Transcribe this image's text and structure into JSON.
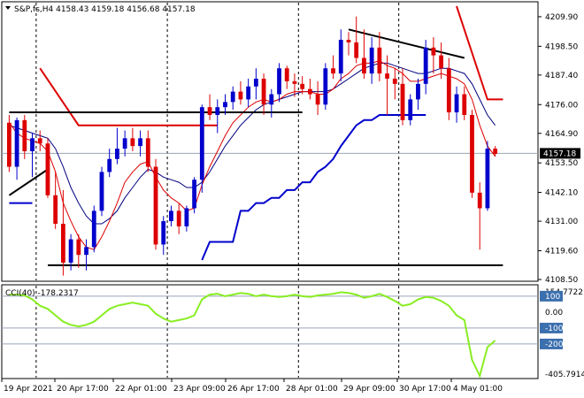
{
  "header": {
    "symbol_line": "S&P,fs,H4  4158.43 4159.18 4156.68 4157.18",
    "indicator_line": "CCI(40) -178.2317"
  },
  "colors": {
    "bull": "#0000cc",
    "bear": "#dd0000",
    "fast_ma": "#dd0000",
    "slow_ma": "#000080",
    "cci": "#88ee22",
    "price_label_bg": "#000000",
    "cci_label_bg": "#3b6fae"
  },
  "chart_data": [
    {
      "type": "candlestick",
      "name": "S&P,fs,H4",
      "ylim": [
        4108.5,
        4215.0
      ],
      "yticks": [
        "4209.90",
        "4198.50",
        "4187.40",
        "4176.00",
        "4164.90",
        "4153.50",
        "4142.10",
        "4131.00",
        "4119.60",
        "4108.50"
      ],
      "current_price": "4157.18",
      "x_labels": [
        "19 Apr 2021",
        "20 Apr 17:00",
        "22 Apr 01:00",
        "23 Apr 09:00",
        "26 Apr 17:00",
        "28 Apr 01:00",
        "29 Apr 09:00",
        "30 Apr 17:00",
        "4 May 01:00"
      ],
      "candles": [
        [
          4169,
          4172,
          4150,
          4152
        ],
        [
          4152,
          4171,
          4147,
          4170
        ],
        [
          4170,
          4172,
          4155,
          4158
        ],
        [
          4158,
          4165,
          4148,
          4163
        ],
        [
          4163,
          4166,
          4158,
          4161
        ],
        [
          4161,
          4163,
          4140,
          4141
        ],
        [
          4141,
          4150,
          4128,
          4130
        ],
        [
          4130,
          4143,
          4110,
          4115
        ],
        [
          4115,
          4126,
          4112,
          4124
        ],
        [
          4124,
          4126,
          4113,
          4118
        ],
        [
          4118,
          4124,
          4112,
          4121
        ],
        [
          4121,
          4137,
          4119,
          4135
        ],
        [
          4135,
          4152,
          4133,
          4150
        ],
        [
          4150,
          4159,
          4148,
          4155
        ],
        [
          4155,
          4167,
          4153,
          4159
        ],
        [
          4159,
          4166,
          4156,
          4163
        ],
        [
          4163,
          4167,
          4158,
          4160
        ],
        [
          4160,
          4166,
          4156,
          4163
        ],
        [
          4163,
          4166,
          4150,
          4152
        ],
        [
          4152,
          4155,
          4120,
          4122
        ],
        [
          4122,
          4133,
          4118,
          4131
        ],
        [
          4131,
          4137,
          4129,
          4135
        ],
        [
          4135,
          4138,
          4126,
          4129
        ],
        [
          4129,
          4137,
          4127,
          4136
        ],
        [
          4136,
          4148,
          4134,
          4147
        ],
        [
          4147,
          4176,
          4142,
          4175
        ],
        [
          4175,
          4180,
          4170,
          4172
        ],
        [
          4172,
          4178,
          4165,
          4175
        ],
        [
          4175,
          4180,
          4172,
          4177
        ],
        [
          4177,
          4183,
          4174,
          4181
        ],
        [
          4181,
          4185,
          4176,
          4178
        ],
        [
          4178,
          4186,
          4175,
          4183
        ],
        [
          4183,
          4190,
          4178,
          4186
        ],
        [
          4186,
          4188,
          4172,
          4176
        ],
        [
          4176,
          4182,
          4171,
          4180
        ],
        [
          4180,
          4192,
          4177,
          4190
        ],
        [
          4190,
          4191,
          4182,
          4185
        ],
        [
          4185,
          4188,
          4179,
          4184
        ],
        [
          4184,
          4187,
          4180,
          4182
        ],
        [
          4182,
          4186,
          4178,
          4180
        ],
        [
          4180,
          4185,
          4172,
          4176
        ],
        [
          4176,
          4192,
          4174,
          4190
        ],
        [
          4190,
          4195,
          4186,
          4188
        ],
        [
          4188,
          4205,
          4185,
          4201
        ],
        [
          4201,
          4204,
          4195,
          4200
        ],
        [
          4200,
          4210,
          4192,
          4194
        ],
        [
          4194,
          4205,
          4186,
          4188
        ],
        [
          4188,
          4202,
          4184,
          4198
        ],
        [
          4198,
          4204,
          4185,
          4188
        ],
        [
          4188,
          4195,
          4172,
          4186
        ],
        [
          4186,
          4190,
          4178,
          4184
        ],
        [
          4184,
          4190,
          4168,
          4170
        ],
        [
          4170,
          4180,
          4168,
          4178
        ],
        [
          4178,
          4186,
          4174,
          4184
        ],
        [
          4184,
          4201,
          4180,
          4198
        ],
        [
          4198,
          4202,
          4188,
          4195
        ],
        [
          4195,
          4200,
          4186,
          4190
        ],
        [
          4190,
          4194,
          4170,
          4173
        ],
        [
          4173,
          4183,
          4169,
          4180
        ],
        [
          4180,
          4183,
          4170,
          4172
        ],
        [
          4172,
          4174,
          4140,
          4142
        ],
        [
          4142,
          4146,
          4120,
          4136
        ],
        [
          4136,
          4162,
          4135,
          4159
        ],
        [
          4159,
          4160,
          4156,
          4157
        ]
      ],
      "series": [
        {
          "name": "fast-ma",
          "values": [
            4169,
            4165,
            4163,
            4162,
            4161,
            4158,
            4150,
            4138,
            4131,
            4125,
            4121,
            4120,
            4125,
            4131,
            4138,
            4146,
            4150,
            4153,
            4154,
            4148,
            4143,
            4140,
            4138,
            4135,
            4136,
            4145,
            4152,
            4158,
            4164,
            4169,
            4172,
            4175,
            4177,
            4178,
            4177,
            4178,
            4180,
            4181,
            4181,
            4181,
            4180,
            4180,
            4182,
            4186,
            4188,
            4191,
            4192,
            4192,
            4193,
            4191,
            4190,
            4188,
            4185,
            4185,
            4186,
            4187,
            4188,
            4187,
            4186,
            4184,
            4178,
            4168,
            4160,
            4156
          ]
        },
        {
          "name": "slow-ma",
          "values": [
            4168,
            4167,
            4166,
            4165,
            4164,
            4163,
            4159,
            4152,
            4144,
            4138,
            4133,
            4130,
            4130,
            4132,
            4135,
            4140,
            4144,
            4148,
            4151,
            4150,
            4148,
            4147,
            4146,
            4144,
            4144,
            4146,
            4150,
            4155,
            4160,
            4164,
            4168,
            4171,
            4174,
            4176,
            4177,
            4178,
            4179,
            4180,
            4181,
            4181,
            4181,
            4181,
            4182,
            4184,
            4186,
            4188,
            4190,
            4191,
            4192,
            4192,
            4191,
            4190,
            4189,
            4188,
            4188,
            4189,
            4190,
            4190,
            4189,
            4188,
            4184,
            4178,
            4172,
            4168
          ]
        },
        {
          "name": "blue-step-line",
          "values": [
            4138,
            4138,
            4138,
            4138,
            null,
            null,
            null,
            null,
            null,
            null,
            null,
            null,
            null,
            null,
            null,
            null,
            null,
            null,
            null,
            null,
            null,
            null,
            null,
            null,
            null,
            4116,
            4123,
            4123,
            4123,
            4123,
            4135,
            4135,
            4138,
            4138,
            4140,
            4140,
            4143,
            4143,
            4146,
            4146,
            4150,
            4152,
            4155,
            4160,
            4164,
            4168,
            4170,
            4170,
            4172,
            4172,
            4172,
            4172,
            4172,
            4172,
            4172,
            null,
            null,
            null,
            null,
            null,
            null,
            null,
            null,
            null
          ]
        },
        {
          "name": "red-step-line",
          "values": [
            null,
            null,
            null,
            null,
            null,
            null,
            null,
            null,
            null,
            null,
            null,
            null,
            null,
            null,
            null,
            null,
            null,
            null,
            null,
            null,
            null,
            null,
            null,
            null,
            null,
            null,
            null,
            null,
            null,
            null,
            null,
            null,
            null,
            null,
            null,
            null,
            null,
            null,
            null,
            null,
            null,
            null,
            null,
            null,
            null,
            null,
            null,
            null,
            null,
            null,
            null,
            null,
            null,
            null,
            null,
            null,
            null,
            null,
            null,
            null,
            null,
            null,
            null,
            null
          ]
        }
      ],
      "resistance_lines": [
        {
          "name": "red-resistance-left",
          "points": [
            [
              4,
              4190
            ],
            [
              9,
              4168
            ],
            [
              27,
              4168
            ]
          ]
        },
        {
          "name": "red-resistance-right",
          "points": [
            [
              58,
              4214
            ],
            [
              62,
              4178
            ],
            [
              64,
              4178
            ]
          ]
        },
        {
          "name": "black-horizontal-upper",
          "points": [
            [
              0,
              4173
            ],
            [
              38,
              4173
            ]
          ]
        },
        {
          "name": "black-support",
          "points": [
            [
              5,
              4114
            ],
            [
              64,
              4114
            ]
          ]
        },
        {
          "name": "black-trend-top",
          "points": [
            [
              44,
              4205
            ],
            [
              59,
              4194
            ]
          ]
        },
        {
          "name": "black-trend-left",
          "points": [
            [
              0,
              4141
            ],
            [
              5,
              4151
            ]
          ]
        }
      ]
    },
    {
      "type": "line",
      "name": "CCI(40)",
      "ylim": [
        -405.7914,
        154.7722
      ],
      "yticks": [
        "154.7722",
        "100",
        "0.00",
        "-100",
        "-200",
        "-405.7914"
      ],
      "current_value": "-178.2317",
      "levels": [
        100,
        -100,
        -200
      ],
      "values": [
        110,
        110,
        105,
        80,
        40,
        20,
        -20,
        -60,
        -80,
        -90,
        -80,
        -60,
        -20,
        20,
        40,
        50,
        60,
        50,
        40,
        -10,
        -40,
        -60,
        -50,
        -40,
        -20,
        80,
        110,
        115,
        100,
        110,
        120,
        115,
        100,
        110,
        100,
        95,
        100,
        110,
        100,
        95,
        105,
        110,
        115,
        125,
        120,
        110,
        90,
        100,
        115,
        95,
        70,
        40,
        50,
        80,
        95,
        90,
        70,
        40,
        -20,
        -50,
        -300,
        -400,
        -220,
        -178
      ]
    }
  ]
}
